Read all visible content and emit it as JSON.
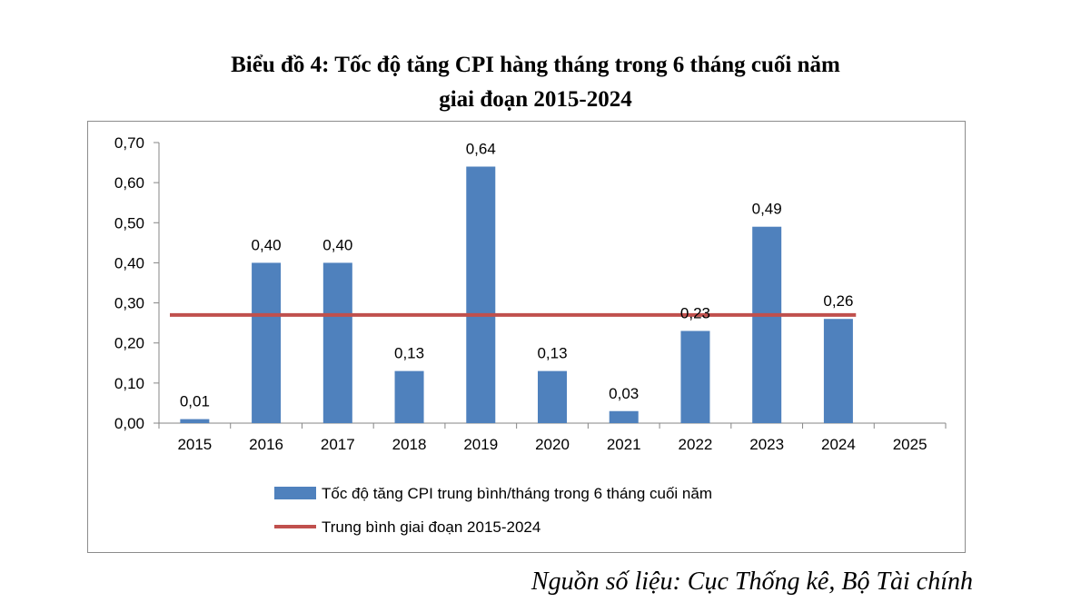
{
  "title": {
    "line1": "Biểu đồ 4: Tốc độ tăng CPI hàng tháng trong 6 tháng cuối năm",
    "line2": "giai đoạn 2015-2024"
  },
  "source": "Nguồn số liệu: Cục Thống kê, Bộ Tài chính",
  "chart_data": {
    "type": "bar",
    "categories": [
      "2015",
      "2016",
      "2017",
      "2018",
      "2019",
      "2020",
      "2021",
      "2022",
      "2023",
      "2024",
      "2025"
    ],
    "series": [
      {
        "name": "Tốc độ tăng CPI trung bình/tháng trong 6 tháng cuối năm",
        "type": "bar",
        "color": "#4f81bd",
        "values": [
          0.01,
          0.4,
          0.4,
          0.13,
          0.64,
          0.13,
          0.03,
          0.23,
          0.49,
          0.26,
          null
        ],
        "labels": [
          "0,01",
          "0,40",
          "0,40",
          "0,13",
          "0,64",
          "0,13",
          "0,03",
          "0,23",
          "0,49",
          "0,26",
          ""
        ]
      },
      {
        "name": "Trung bình giai đoạn 2015-2024",
        "type": "line",
        "color": "#c0504d",
        "values": [
          0.27,
          0.27,
          0.27,
          0.27,
          0.27,
          0.27,
          0.27,
          0.27,
          0.27,
          0.27,
          null
        ]
      }
    ],
    "ylim": [
      0,
      0.7
    ],
    "yticks": [
      0,
      0.1,
      0.2,
      0.3,
      0.4,
      0.5,
      0.6,
      0.7
    ],
    "ytick_labels": [
      "0,00",
      "0,10",
      "0,20",
      "0,30",
      "0,40",
      "0,50",
      "0,60",
      "0,70"
    ],
    "grid": false,
    "legend_position": "bottom"
  }
}
